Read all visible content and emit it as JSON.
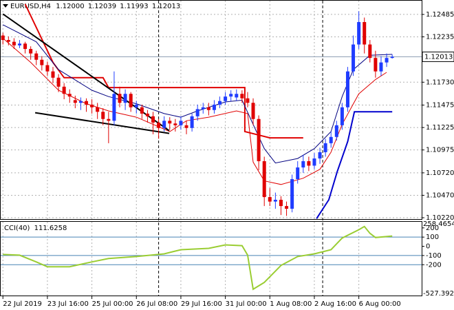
{
  "chart_data": [
    {
      "type": "candlestick",
      "symbol": "EURUSD,H4",
      "ohlc_labels": [
        "1.12000",
        "1.12039",
        "1.11993",
        "1.12013"
      ],
      "candles": [
        [
          1.1225,
          1.1228,
          1.1215,
          1.122
        ],
        [
          1.122,
          1.1224,
          1.1214,
          1.1218
        ],
        [
          1.1218,
          1.1222,
          1.121,
          1.1214
        ],
        [
          1.1214,
          1.122,
          1.1211,
          1.1216
        ],
        [
          1.1216,
          1.1218,
          1.1205,
          1.121
        ],
        [
          1.121,
          1.1213,
          1.1198,
          1.1205
        ],
        [
          1.1205,
          1.1208,
          1.1192,
          1.1198
        ],
        [
          1.1198,
          1.1202,
          1.1186,
          1.1192
        ],
        [
          1.1192,
          1.1196,
          1.118,
          1.1185
        ],
        [
          1.1185,
          1.119,
          1.1172,
          1.1178
        ],
        [
          1.1178,
          1.1182,
          1.1162,
          1.1168
        ],
        [
          1.1168,
          1.1172,
          1.1154,
          1.116
        ],
        [
          1.116,
          1.1165,
          1.115,
          1.1157
        ],
        [
          1.1153,
          1.1158,
          1.1144,
          1.115
        ],
        [
          1.115,
          1.1156,
          1.1142,
          1.1152
        ],
        [
          1.1152,
          1.1155,
          1.114,
          1.1148
        ],
        [
          1.1148,
          1.1154,
          1.1138,
          1.1145
        ],
        [
          1.1145,
          1.115,
          1.1132,
          1.114
        ],
        [
          1.114,
          1.1144,
          1.1125,
          1.1132
        ],
        [
          1.1132,
          1.114,
          1.1105,
          1.113
        ],
        [
          1.113,
          1.1185,
          1.1125,
          1.116
        ],
        [
          1.116,
          1.1168,
          1.1145,
          1.115
        ],
        [
          1.115,
          1.1165,
          1.1142,
          1.116
        ],
        [
          1.116,
          1.1162,
          1.114,
          1.1145
        ],
        [
          1.1145,
          1.1152,
          1.1138,
          1.1148
        ],
        [
          1.1145,
          1.1148,
          1.1132,
          1.1138
        ],
        [
          1.1138,
          1.1142,
          1.1128,
          1.1135
        ],
        [
          1.1135,
          1.114,
          1.1115,
          1.1128
        ],
        [
          1.1128,
          1.1132,
          1.111,
          1.1122
        ],
        [
          1.1122,
          1.1135,
          1.1118,
          1.113
        ],
        [
          1.113,
          1.1134,
          1.112,
          1.1127
        ],
        [
          1.1127,
          1.1132,
          1.1118,
          1.1125
        ],
        [
          1.1125,
          1.1135,
          1.112,
          1.113
        ],
        [
          1.1125,
          1.113,
          1.1115,
          1.1122
        ],
        [
          1.1122,
          1.1138,
          1.1118,
          1.1135
        ],
        [
          1.1135,
          1.1148,
          1.113,
          1.1143
        ],
        [
          1.1143,
          1.115,
          1.1138,
          1.1145
        ],
        [
          1.1145,
          1.115,
          1.1136,
          1.1142
        ],
        [
          1.1142,
          1.1153,
          1.1138,
          1.1148
        ],
        [
          1.1148,
          1.1157,
          1.1144,
          1.1152
        ],
        [
          1.1152,
          1.1162,
          1.1148,
          1.1157
        ],
        [
          1.1157,
          1.1164,
          1.1152,
          1.116
        ],
        [
          1.1156,
          1.1165,
          1.1152,
          1.116
        ],
        [
          1.116,
          1.1164,
          1.115,
          1.1155
        ],
        [
          1.1155,
          1.1162,
          1.1145,
          1.115
        ],
        [
          1.115,
          1.1155,
          1.1125,
          1.1132
        ],
        [
          1.1132,
          1.1136,
          1.1075,
          1.1085
        ],
        [
          1.1085,
          1.109,
          1.1035,
          1.1045
        ],
        [
          1.1045,
          1.1055,
          1.1035,
          1.104
        ],
        [
          1.104,
          1.105,
          1.1032,
          1.1042
        ],
        [
          1.1042,
          1.1046,
          1.1025,
          1.1035
        ],
        [
          1.1035,
          1.104,
          1.1024,
          1.1032
        ],
        [
          1.1032,
          1.107,
          1.1028,
          1.1065
        ],
        [
          1.1065,
          1.1085,
          1.106,
          1.1078
        ],
        [
          1.1078,
          1.1092,
          1.1072,
          1.1085
        ],
        [
          1.1085,
          1.109,
          1.1074,
          1.108
        ],
        [
          1.108,
          1.1094,
          1.1076,
          1.1088
        ],
        [
          1.1088,
          1.11,
          1.1082,
          1.1095
        ],
        [
          1.1095,
          1.111,
          1.109,
          1.1105
        ],
        [
          1.1105,
          1.1118,
          1.11,
          1.1112
        ],
        [
          1.1112,
          1.113,
          1.1108,
          1.1125
        ],
        [
          1.1125,
          1.115,
          1.112,
          1.1145
        ],
        [
          1.1145,
          1.119,
          1.114,
          1.1185
        ],
        [
          1.1185,
          1.1225,
          1.118,
          1.1215
        ],
        [
          1.1215,
          1.1252,
          1.121,
          1.124
        ],
        [
          1.124,
          1.1245,
          1.1205,
          1.1215
        ],
        [
          1.1215,
          1.122,
          1.1195,
          1.12
        ],
        [
          1.12,
          1.1208,
          1.1178,
          1.1185
        ],
        [
          1.1185,
          1.1202,
          1.118,
          1.1195
        ],
        [
          1.1195,
          1.1205,
          1.119,
          1.12
        ],
        [
          1.12,
          1.12039,
          1.11993,
          1.12013
        ]
      ],
      "bull_color": "#1f3cff",
      "bear_color": "#e00000",
      "xlim": [
        -0.4,
        75.3
      ],
      "ylim": [
        1.10205,
        1.12638
      ],
      "yticks": [
        1.12485,
        1.12235,
        {
          "value": 1.1173,
          "label": "1.11730"
        },
        1.11475,
        1.11225,
        1.10975,
        {
          "value": 1.1072,
          "label": "1.10720"
        },
        {
          "value": 1.1047,
          "label": "1.10470"
        },
        {
          "value": 1.1022,
          "label": "1.10220"
        }
      ],
      "xticks": [
        {
          "value": 0,
          "label": "22 Jul 2019"
        },
        {
          "value": 8,
          "label": "23 Jul 16:00"
        },
        {
          "value": 16,
          "label": "25 Jul 00:00"
        },
        {
          "value": 24,
          "label": "26 Jul 08:00"
        },
        {
          "value": 32,
          "label": "29 Jul 16:00"
        },
        {
          "value": 40,
          "label": "31 Jul 00:00"
        },
        {
          "value": 48,
          "label": "1 Aug 08:00"
        },
        {
          "value": 56,
          "label": "2 Aug 16:00"
        },
        {
          "value": 64,
          "label": "6 Aug 00:00"
        }
      ],
      "separators": [
        28,
        57.5
      ],
      "current_price": 1.12013,
      "grid": true,
      "series": [
        {
          "color": "#e00000",
          "width": 2,
          "x": [
            4,
            9,
            11,
            18,
            19,
            43.5,
            43.5,
            48,
            54
          ],
          "values": [
            1.126,
            1.1195,
            1.1178,
            1.1178,
            1.1167,
            1.1167,
            1.1118,
            1.1111,
            1.1111
          ]
        },
        {
          "color": "#000080",
          "width": 1,
          "x": [
            0,
            6,
            10,
            16,
            19,
            24,
            29,
            32,
            35,
            40,
            43,
            45,
            47,
            49,
            53,
            56,
            59,
            61,
            63,
            66,
            70
          ],
          "values": [
            1.1237,
            1.1218,
            1.1187,
            1.1164,
            1.1157,
            1.1149,
            1.1138,
            1.1134,
            1.1141,
            1.1151,
            1.1153,
            1.1126,
            1.1099,
            1.1083,
            1.1088,
            1.1099,
            1.1118,
            1.1157,
            1.1187,
            1.1203,
            1.1204
          ]
        },
        {
          "color": "#e00000",
          "width": 1,
          "x": [
            0,
            5,
            10,
            15,
            19,
            24,
            30,
            33,
            37,
            42,
            44,
            45,
            47,
            50,
            54,
            57,
            59,
            61,
            64,
            67,
            69
          ],
          "values": [
            1.1222,
            1.1195,
            1.1164,
            1.1149,
            1.1141,
            1.1134,
            1.1118,
            1.113,
            1.1134,
            1.1141,
            1.1138,
            1.1084,
            1.1063,
            1.1059,
            1.1066,
            1.1076,
            1.1095,
            1.1126,
            1.116,
            1.1176,
            1.1184
          ]
        },
        {
          "color": "#0000cd",
          "width": 2,
          "x": [
            56.4,
            58.6,
            60.1,
            62,
            63.2,
            70
          ],
          "values": [
            1.1021,
            1.1042,
            1.1073,
            1.1107,
            1.114,
            1.114
          ]
        },
        {
          "color": "#000000",
          "width": 2,
          "x": [
            0,
            29.9
          ],
          "values": [
            1.1249,
            1.1119
          ]
        },
        {
          "color": "#000000",
          "width": 2,
          "x": [
            5.8,
            29.9
          ],
          "values": [
            1.1139,
            1.1116
          ]
        }
      ]
    },
    {
      "type": "line",
      "title": "CCI(40)",
      "last_value": 111.6258,
      "ylim": [
        -527.3927,
        258.4654
      ],
      "yticks": [
        200,
        100,
        0,
        -100,
        -200
      ],
      "levels": [
        100,
        -100,
        -200
      ],
      "level_color": "#4682b4",
      "series": [
        {
          "color": "#9acd32",
          "width": 2,
          "x": [
            0,
            3,
            6,
            8,
            12,
            16,
            19,
            24,
            29,
            32,
            37,
            40,
            43,
            44,
            45,
            47,
            50,
            53,
            56,
            59,
            61,
            64,
            65,
            66,
            67,
            70
          ],
          "values": [
            -89,
            -96,
            -170,
            -222,
            -222,
            -170,
            -133,
            -111,
            -82,
            -37,
            -22,
            15,
            7,
            -96,
            -467,
            -393,
            -208,
            -111,
            -82,
            -37,
            89,
            180,
            215,
            141,
            95,
            111.6258
          ]
        }
      ]
    }
  ]
}
